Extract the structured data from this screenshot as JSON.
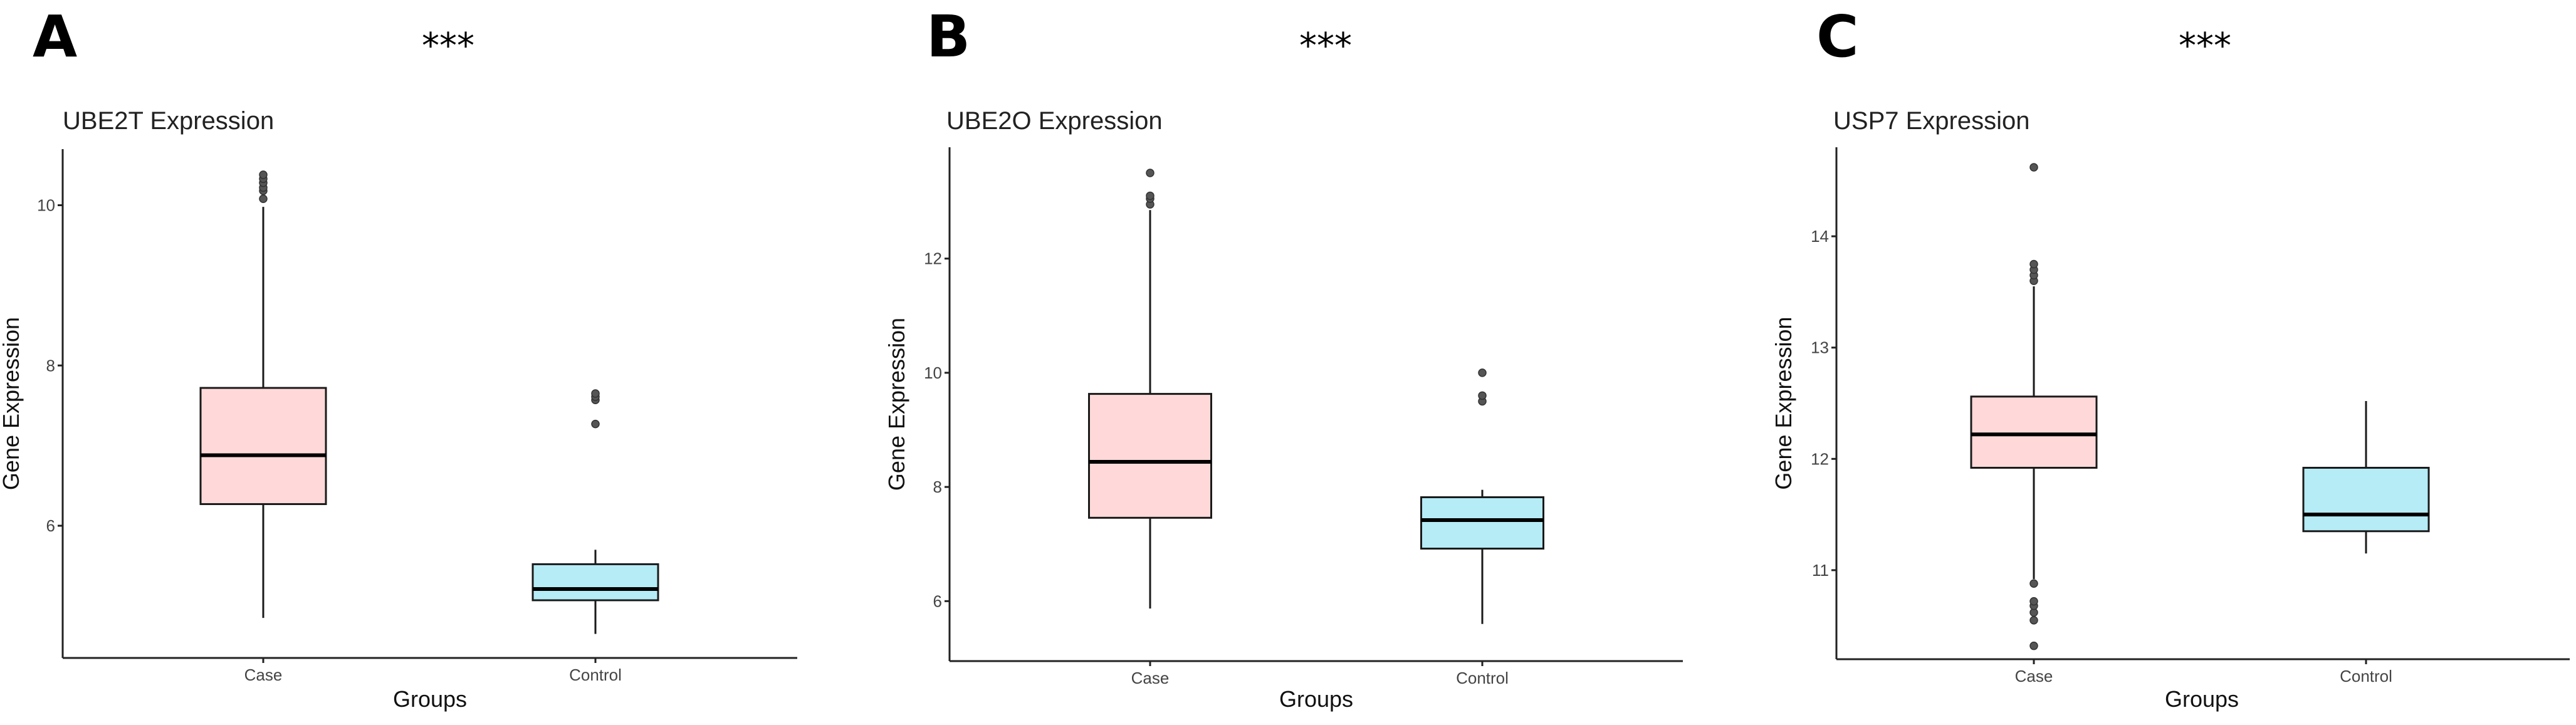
{
  "colors": {
    "case_fill": "#ffd9d9",
    "control_fill": "#b5ecf6",
    "stroke": "#1a1a1a",
    "outlier": "#555555"
  },
  "chart_data": [
    {
      "type": "box",
      "panel": "A",
      "significance": "***",
      "title": "UBE2T Expression",
      "xlabel": "Groups",
      "ylabel": "Gene Expression",
      "categories": [
        "Case",
        "Control"
      ],
      "yticks": [
        6,
        8,
        10
      ],
      "ylim": [
        4.35,
        10.7
      ],
      "boxes": [
        {
          "category": "Case",
          "min": 4.85,
          "q1": 6.27,
          "median": 6.88,
          "q3": 7.72,
          "max": 9.98,
          "outliers": [
            10.08,
            10.18,
            10.22,
            10.28,
            10.33,
            10.38
          ]
        },
        {
          "category": "Control",
          "min": 4.65,
          "q1": 5.07,
          "median": 5.21,
          "q3": 5.52,
          "max": 5.7,
          "outliers": [
            7.27,
            7.57,
            7.61,
            7.65
          ]
        }
      ]
    },
    {
      "type": "box",
      "panel": "B",
      "significance": "***",
      "title": "UBE2O Expression",
      "xlabel": "Groups",
      "ylabel": "Gene Expression",
      "categories": [
        "Case",
        "Control"
      ],
      "yticks": [
        6,
        8,
        10,
        12
      ],
      "ylim": [
        4.95,
        13.95
      ],
      "boxes": [
        {
          "category": "Case",
          "min": 5.87,
          "q1": 7.46,
          "median": 8.44,
          "q3": 9.63,
          "max": 12.85,
          "outliers": [
            12.95,
            13.05,
            13.1,
            13.5
          ]
        },
        {
          "category": "Control",
          "min": 5.6,
          "q1": 6.92,
          "median": 7.42,
          "q3": 7.82,
          "max": 7.95,
          "outliers": [
            9.5,
            9.6,
            10.0
          ]
        }
      ]
    },
    {
      "type": "box",
      "panel": "C",
      "significance": "***",
      "title": "USP7 Expression",
      "xlabel": "Groups",
      "ylabel": "Gene Expression",
      "categories": [
        "Case",
        "Control"
      ],
      "yticks": [
        11,
        12,
        13,
        14
      ],
      "ylim": [
        10.2,
        14.8
      ],
      "boxes": [
        {
          "category": "Case",
          "min": 10.92,
          "q1": 11.92,
          "median": 12.22,
          "q3": 12.56,
          "max": 13.55,
          "outliers": [
            10.32,
            10.55,
            10.62,
            10.68,
            10.72,
            10.88,
            13.6,
            13.65,
            13.7,
            13.75,
            14.62
          ]
        },
        {
          "category": "Control",
          "min": 11.15,
          "q1": 11.35,
          "median": 11.5,
          "q3": 11.92,
          "max": 12.52,
          "outliers": []
        }
      ]
    }
  ]
}
